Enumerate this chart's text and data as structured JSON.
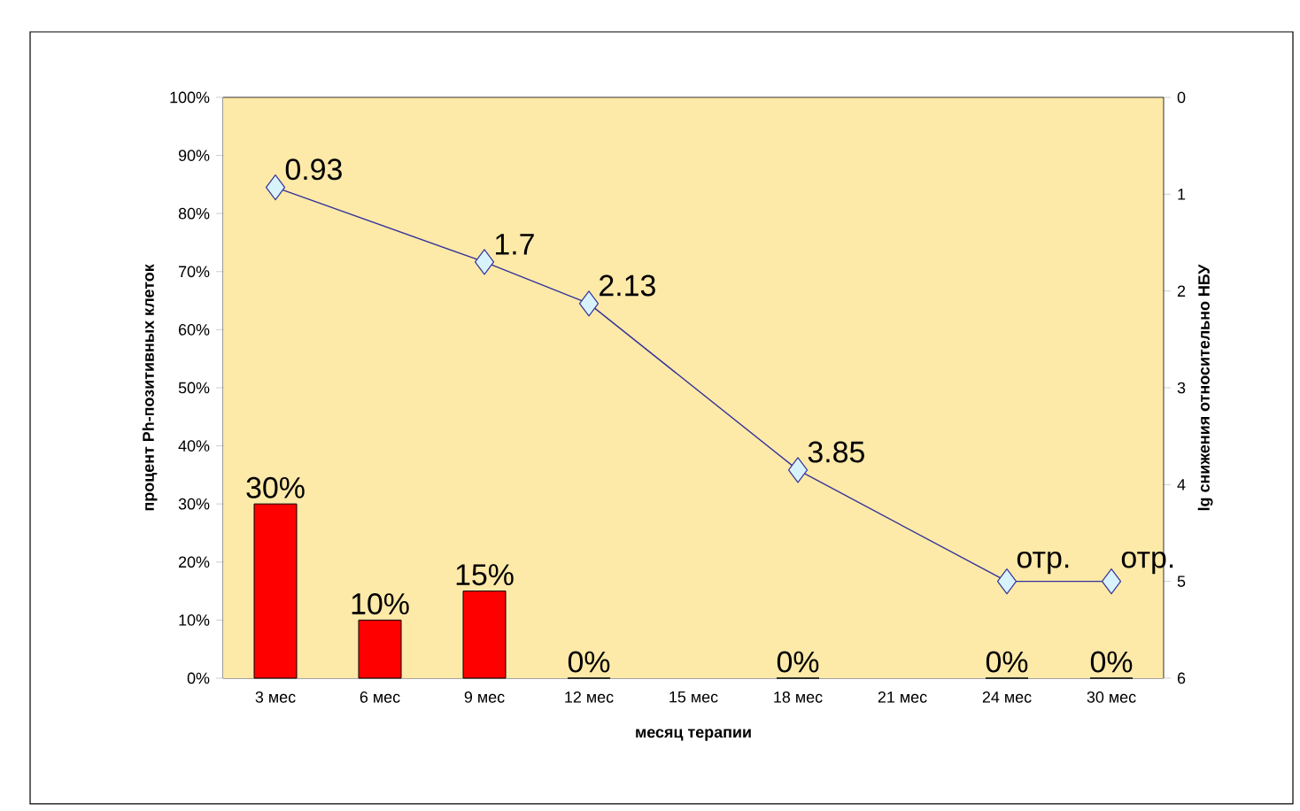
{
  "chart_data": {
    "type": "bar",
    "xlabel": "месяц терапии",
    "ylabel": "процент Ph-позитивных клеток",
    "y2label": "lg снижения относительно НБУ",
    "categories": [
      "3 мес",
      "6 мес",
      "9 мес",
      "12 мес",
      "15 мес",
      "18 мес",
      "21 мес",
      "24 мес",
      "30 мес"
    ],
    "series": [
      {
        "color": "#ff0000",
        "values": [
          30,
          10,
          15,
          0,
          null,
          0,
          null,
          0,
          0
        ],
        "value_labels": [
          "30%",
          "10%",
          "15%",
          "0%",
          null,
          "0%",
          null,
          "0%",
          "0%"
        ]
      },
      {
        "type": "line",
        "axis": "y2",
        "color": "#333399",
        "marker": "diamond",
        "values": [
          0.93,
          null,
          1.7,
          2.13,
          null,
          3.85,
          null,
          5,
          5
        ],
        "value_labels": [
          "0.93",
          null,
          "1.7",
          "2.13",
          null,
          "3.85",
          null,
          "отр.",
          "отр."
        ]
      }
    ],
    "ylim": [
      0,
      100
    ],
    "yticks": [
      {
        "value": 0,
        "label": "0%"
      },
      {
        "value": 10,
        "label": "10%"
      },
      {
        "value": 20,
        "label": "20%"
      },
      {
        "value": 30,
        "label": "30%"
      },
      {
        "value": 40,
        "label": "40%"
      },
      {
        "value": 50,
        "label": "50%"
      },
      {
        "value": 60,
        "label": "60%"
      },
      {
        "value": 70,
        "label": "70%"
      },
      {
        "value": 80,
        "label": "80%"
      },
      {
        "value": 90,
        "label": "90%"
      },
      {
        "value": 100,
        "label": "100%"
      }
    ],
    "y2lim": [
      6,
      0
    ],
    "y2ticks": [
      0,
      1,
      2,
      3,
      4,
      5,
      6
    ]
  }
}
